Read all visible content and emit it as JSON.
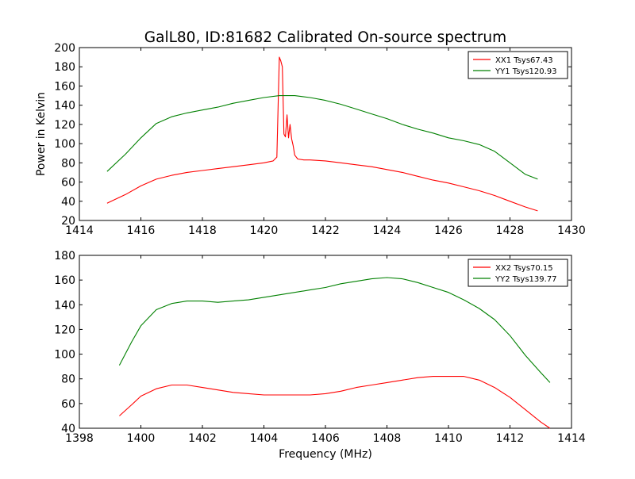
{
  "title": "GalL80, ID:81682 Calibrated On-source spectrum",
  "ylabel": "Power in Kelvin",
  "xlabel": "Frequency (MHz)",
  "colors": {
    "red": "#ff0000",
    "green": "#008000"
  },
  "chart_data": [
    {
      "type": "line",
      "title": "GalL80, ID:81682 Calibrated On-source spectrum",
      "ylabel": "Power in Kelvin",
      "xlabel": "",
      "xlim": [
        1414,
        1430
      ],
      "ylim": [
        20,
        200
      ],
      "xticks": [
        1414,
        1416,
        1418,
        1420,
        1422,
        1424,
        1426,
        1428,
        1430
      ],
      "yticks": [
        20,
        40,
        60,
        80,
        100,
        120,
        140,
        160,
        180,
        200
      ],
      "legend": "top-right",
      "series": [
        {
          "name": "XX1 Tsys67.43",
          "color": "#ff0000",
          "x": [
            1414.9,
            1415.5,
            1416.0,
            1416.5,
            1417.0,
            1417.5,
            1418.0,
            1418.5,
            1419.0,
            1419.5,
            1420.0,
            1420.3,
            1420.42,
            1420.47,
            1420.5,
            1420.55,
            1420.6,
            1420.65,
            1420.7,
            1420.75,
            1420.8,
            1420.85,
            1420.9,
            1420.95,
            1421.0,
            1421.1,
            1421.3,
            1421.5,
            1422.0,
            1422.5,
            1423.0,
            1423.5,
            1424.0,
            1424.5,
            1425.0,
            1425.5,
            1426.0,
            1426.5,
            1427.0,
            1427.5,
            1428.0,
            1428.5,
            1428.9
          ],
          "y": [
            38,
            47,
            56,
            63,
            67,
            70,
            72,
            74,
            76,
            78,
            80,
            82,
            86,
            150,
            190,
            186,
            180,
            110,
            107,
            130,
            106,
            120,
            105,
            98,
            88,
            84,
            83,
            83,
            82,
            80,
            78,
            76,
            73,
            70,
            66,
            62,
            59,
            55,
            51,
            46,
            40,
            34,
            30
          ]
        },
        {
          "name": "YY1 Tsys120.93",
          "color": "#008000",
          "x": [
            1414.9,
            1415.5,
            1416.0,
            1416.5,
            1417.0,
            1417.5,
            1418.0,
            1418.5,
            1419.0,
            1419.5,
            1420.0,
            1420.5,
            1421.0,
            1421.5,
            1422.0,
            1422.5,
            1423.0,
            1423.5,
            1424.0,
            1424.5,
            1425.0,
            1425.5,
            1426.0,
            1426.5,
            1427.0,
            1427.5,
            1428.0,
            1428.5,
            1428.9
          ],
          "y": [
            71,
            89,
            106,
            121,
            128,
            132,
            135,
            138,
            142,
            145,
            148,
            150,
            150,
            148,
            145,
            141,
            136,
            131,
            126,
            120,
            115,
            111,
            106,
            103,
            99,
            92,
            80,
            68,
            63
          ]
        }
      ]
    },
    {
      "type": "line",
      "title": "",
      "ylabel": "",
      "xlabel": "Frequency (MHz)",
      "xlim": [
        1398,
        1414
      ],
      "ylim": [
        40,
        180
      ],
      "xticks": [
        1398,
        1400,
        1402,
        1404,
        1406,
        1408,
        1410,
        1412,
        1414
      ],
      "yticks": [
        40,
        60,
        80,
        100,
        120,
        140,
        160,
        180
      ],
      "legend": "top-right",
      "series": [
        {
          "name": "XX2 Tsys70.15",
          "color": "#ff0000",
          "x": [
            1399.3,
            1399.7,
            1400.0,
            1400.5,
            1401.0,
            1401.5,
            1402.0,
            1402.5,
            1403.0,
            1403.5,
            1404.0,
            1404.5,
            1405.0,
            1405.5,
            1406.0,
            1406.5,
            1407.0,
            1407.5,
            1408.0,
            1408.5,
            1409.0,
            1409.5,
            1410.0,
            1410.5,
            1411.0,
            1411.5,
            1412.0,
            1412.5,
            1413.0,
            1413.3
          ],
          "y": [
            50,
            59,
            66,
            72,
            75,
            75,
            73,
            71,
            69,
            68,
            67,
            67,
            67,
            67,
            68,
            70,
            73,
            75,
            77,
            79,
            81,
            82,
            82,
            82,
            79,
            73,
            65,
            55,
            45,
            40
          ]
        },
        {
          "name": "YY2 Tsys139.77",
          "color": "#008000",
          "x": [
            1399.3,
            1399.7,
            1400.0,
            1400.5,
            1401.0,
            1401.5,
            1402.0,
            1402.5,
            1403.0,
            1403.5,
            1404.0,
            1404.5,
            1405.0,
            1405.5,
            1406.0,
            1406.5,
            1407.0,
            1407.5,
            1408.0,
            1408.5,
            1409.0,
            1409.5,
            1410.0,
            1410.5,
            1411.0,
            1411.5,
            1412.0,
            1412.5,
            1413.0,
            1413.3
          ],
          "y": [
            91,
            110,
            123,
            136,
            141,
            143,
            143,
            142,
            143,
            144,
            146,
            148,
            150,
            152,
            154,
            157,
            159,
            161,
            162,
            161,
            158,
            154,
            150,
            144,
            137,
            128,
            115,
            99,
            85,
            77
          ]
        }
      ]
    }
  ]
}
